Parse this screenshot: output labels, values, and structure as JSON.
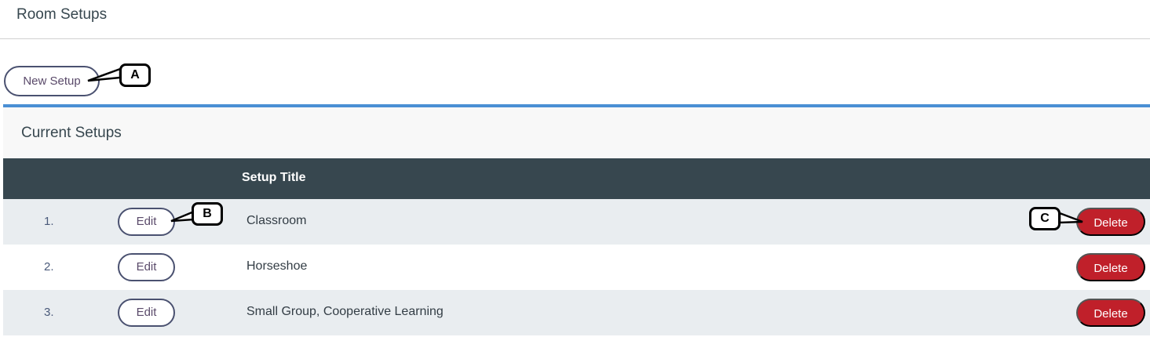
{
  "header": {
    "title": "Room Setups"
  },
  "toolbar": {
    "new_setup_label": "New Setup"
  },
  "panel": {
    "title": "Current Setups"
  },
  "table": {
    "columns": [
      "",
      "",
      "Setup Title",
      ""
    ],
    "rows": [
      {
        "num": "1.",
        "edit": "Edit",
        "title": "Classroom",
        "delete": "Delete"
      },
      {
        "num": "2.",
        "edit": "Edit",
        "title": "Horseshoe",
        "delete": "Delete"
      },
      {
        "num": "3.",
        "edit": "Edit",
        "title": "Small Group, Cooperative Learning",
        "delete": "Delete"
      }
    ]
  },
  "callouts": {
    "a": "A",
    "b": "B",
    "c": "C"
  },
  "colors": {
    "accent_bar": "#4a8fd4",
    "table_header": "#37474f",
    "delete": "#c0202a",
    "row_alt": "#e9edf0"
  }
}
